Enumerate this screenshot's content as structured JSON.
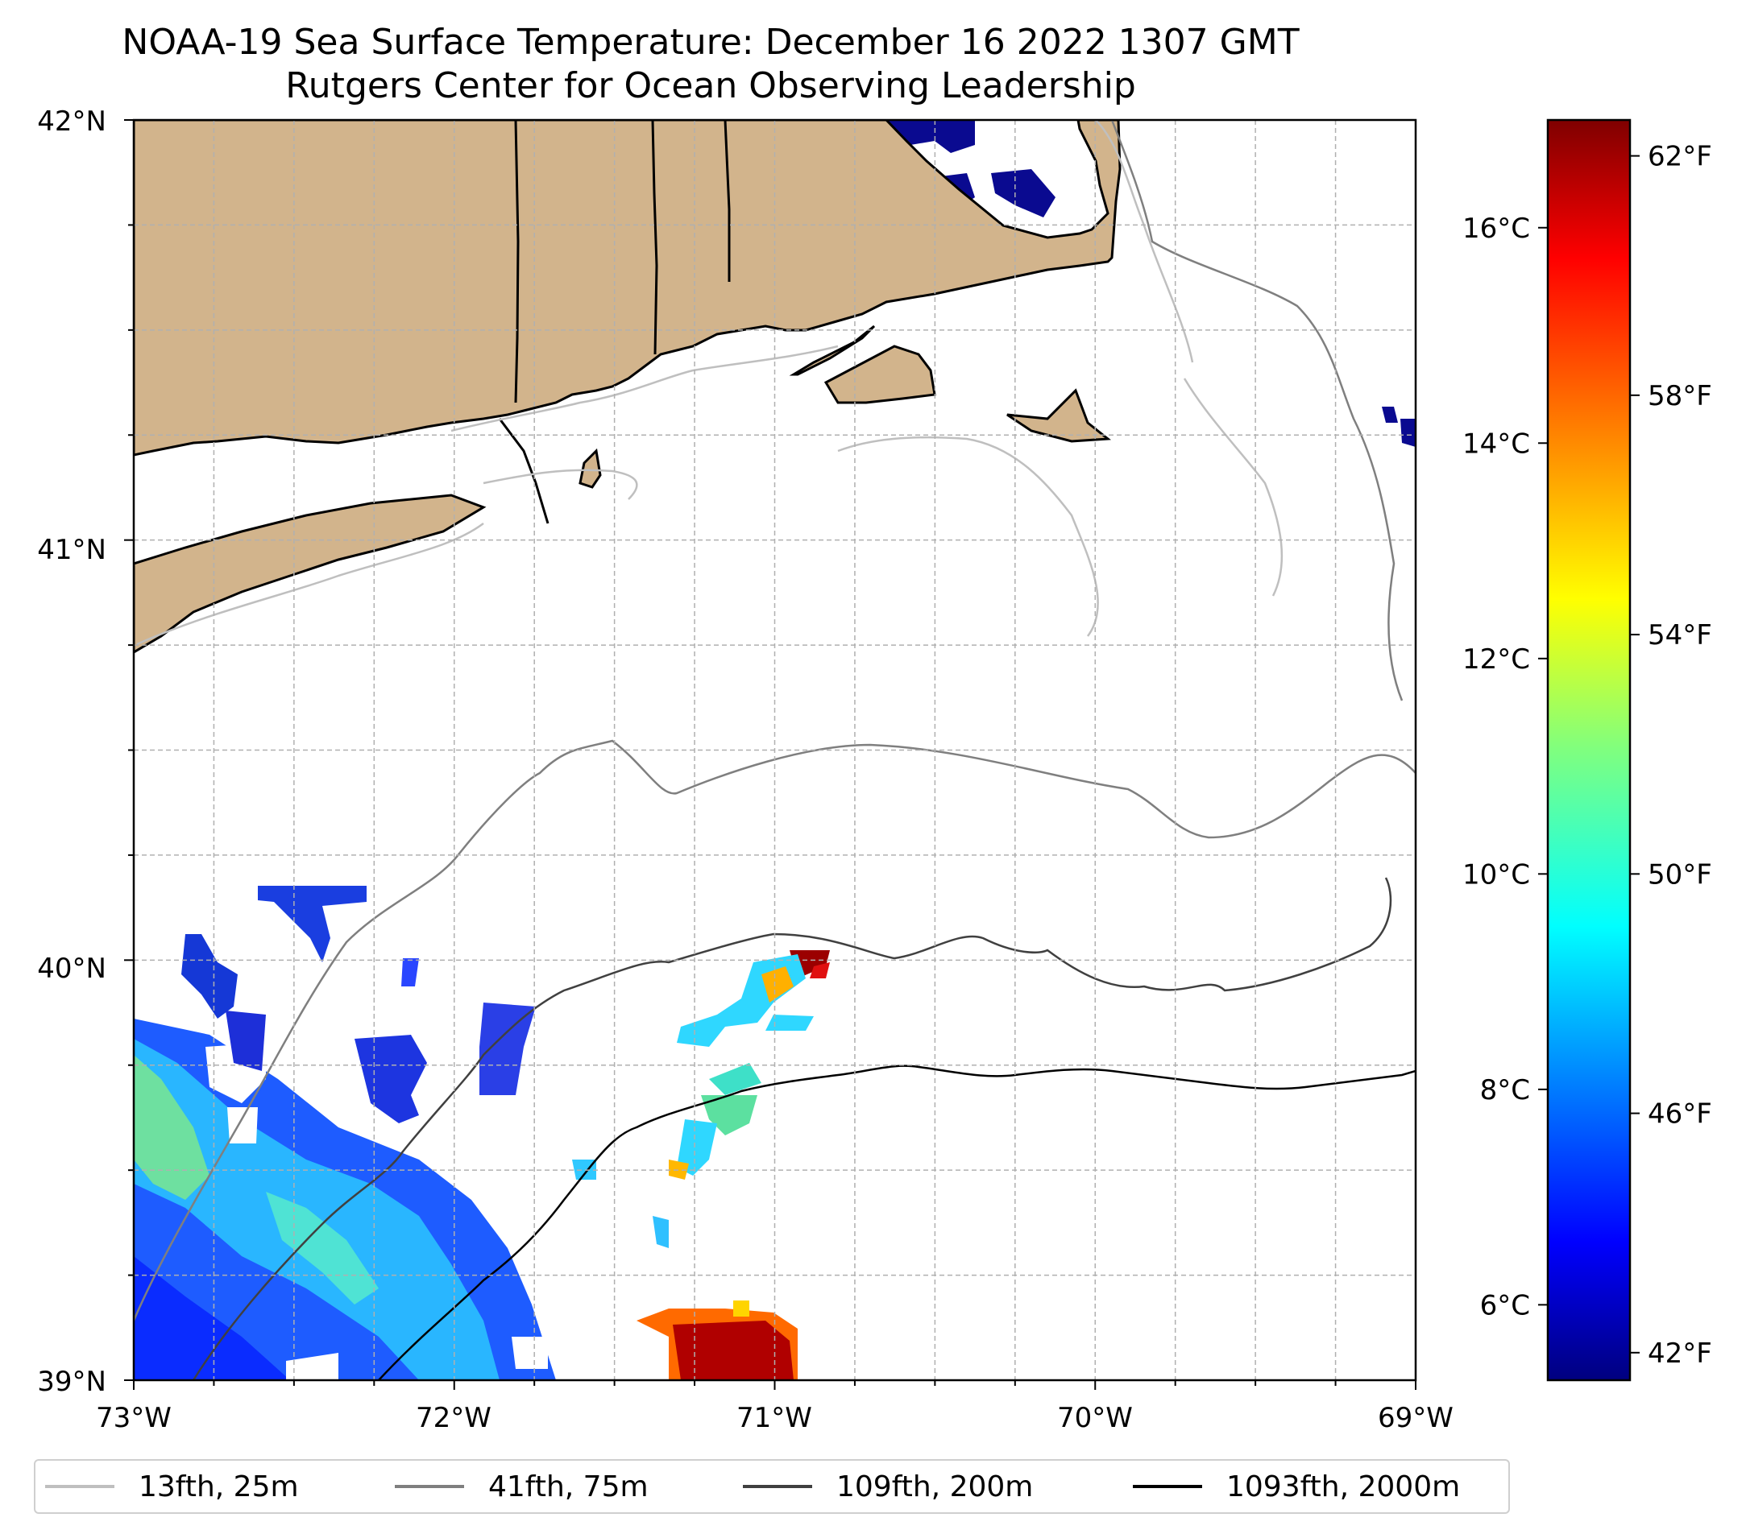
{
  "title_line1": "NOAA-19 Sea Surface Temperature: December 16 2022 1307 GMT",
  "title_line2": "Rutgers Center for Ocean Observing Leadership",
  "axes": {
    "lat_labels": [
      "42°N",
      "41°N",
      "40°N",
      "39°N"
    ],
    "lon_labels": [
      "73°W",
      "72°W",
      "71°W",
      "70°W",
      "69°W"
    ],
    "lon_range": [
      -73,
      -69
    ],
    "lat_range": [
      39,
      42
    ],
    "grid": "dashed, every 0.25°"
  },
  "colorbar": {
    "colormap": "jet",
    "range_c": [
      5.3,
      17.0
    ],
    "celsius_labels": [
      "16°C",
      "14°C",
      "12°C",
      "10°C",
      "8°C",
      "6°C"
    ],
    "celsius_values": [
      16,
      14,
      12,
      10,
      8,
      6
    ],
    "fahrenheit_labels": [
      "62°F",
      "58°F",
      "54°F",
      "50°F",
      "46°F",
      "42°F"
    ],
    "fahrenheit_values": [
      62,
      58,
      54,
      50,
      46,
      42
    ]
  },
  "legend": {
    "items": [
      {
        "label": "13fth, 25m",
        "color": "#bfbfbf"
      },
      {
        "label": "41fth, 75m",
        "color": "#7f7f7f"
      },
      {
        "label": "109fth, 200m",
        "color": "#404040"
      },
      {
        "label": "1093fth, 2000m",
        "color": "#000000"
      }
    ]
  },
  "land_color": "#d2b48c",
  "no_data_color": "#ffffff"
}
